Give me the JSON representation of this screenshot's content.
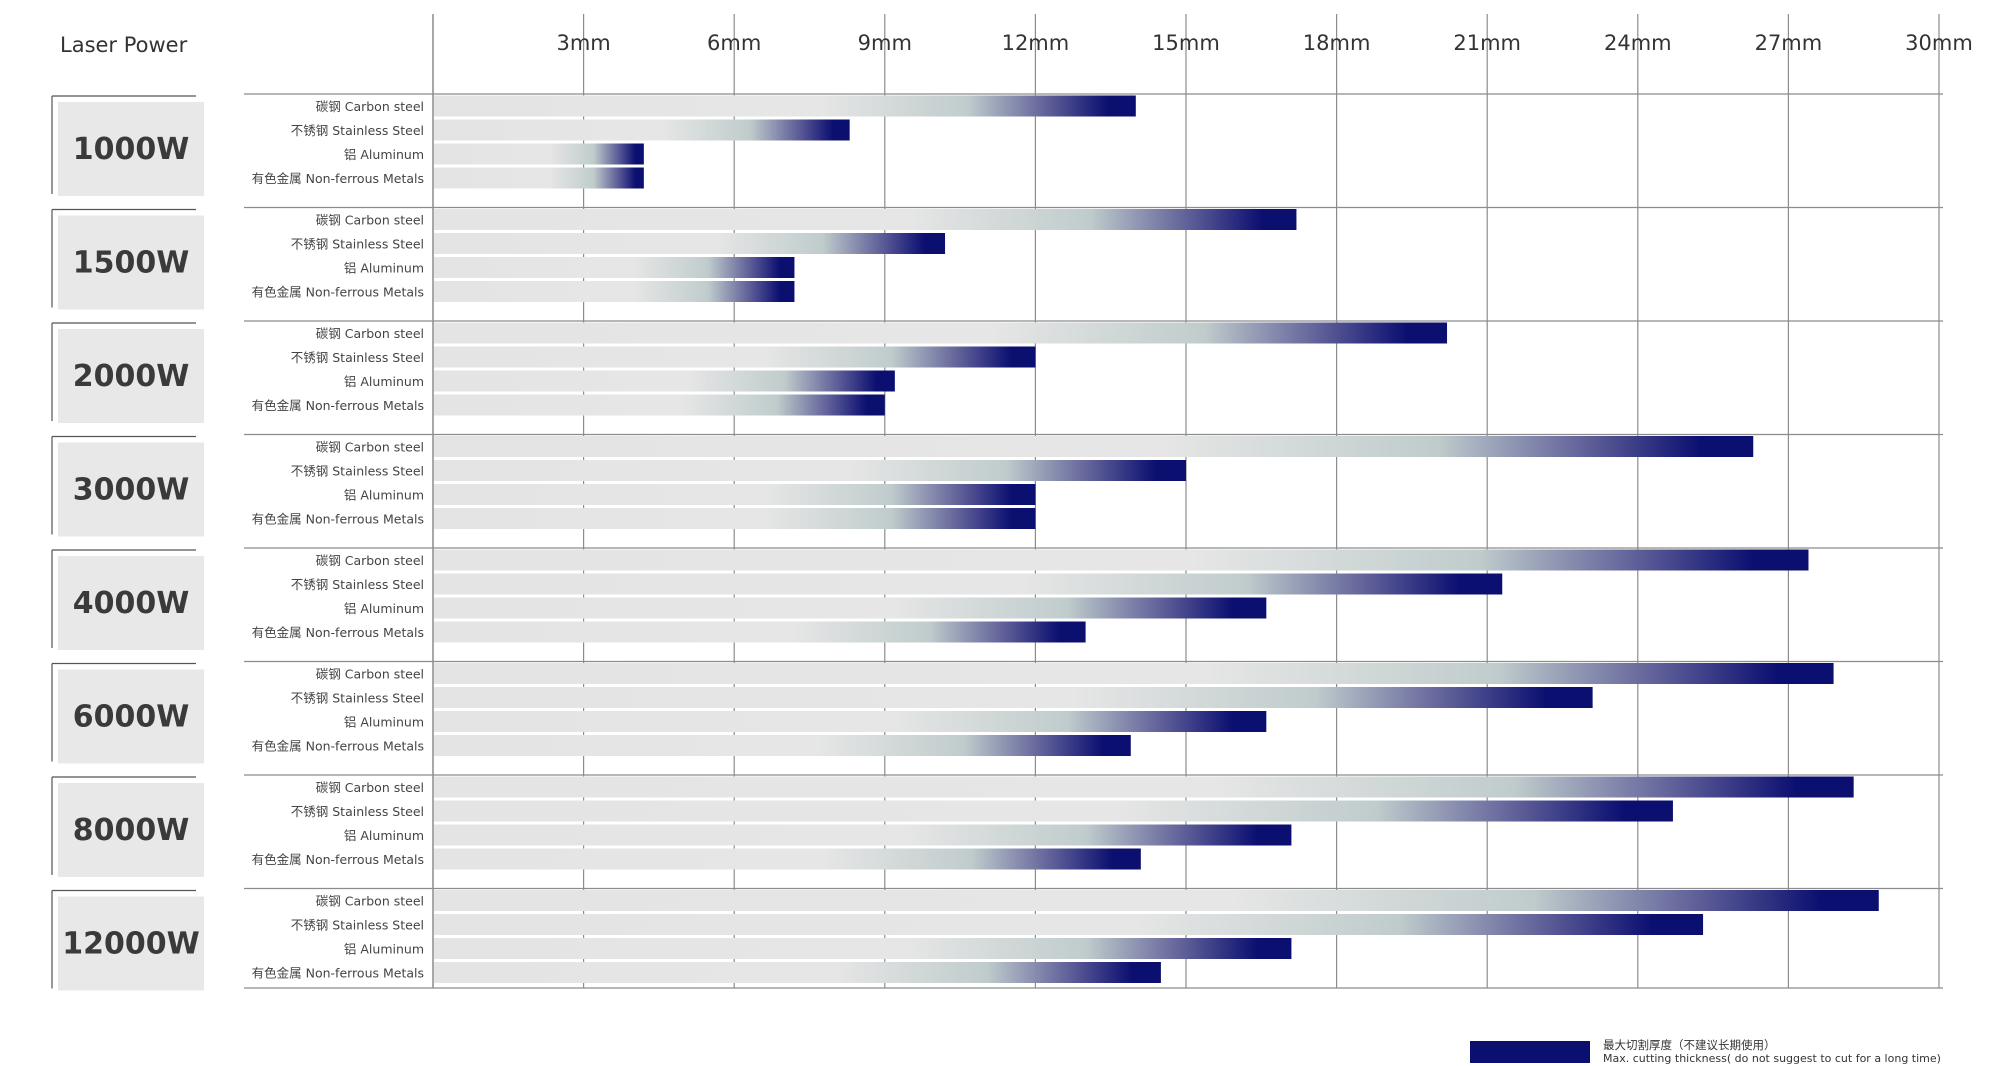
{
  "chart_data": {
    "type": "bar",
    "orientation": "horizontal",
    "header_label": "Laser Power",
    "x_unit": "mm",
    "x_ticks": [
      "3mm",
      "6mm",
      "9mm",
      "12mm",
      "15mm",
      "18mm",
      "21mm",
      "24mm",
      "27mm",
      "30mm"
    ],
    "x_tick_values": [
      3,
      6,
      9,
      12,
      15,
      18,
      21,
      24,
      27,
      30
    ],
    "xlim": [
      0,
      30
    ],
    "grid": true,
    "materials": [
      {
        "zh": "碳钢",
        "en": "Carbon steel"
      },
      {
        "zh": "不锈钢",
        "en": "Stainless Steel"
      },
      {
        "zh": "铝",
        "en": "Aluminum"
      },
      {
        "zh": "有色金属",
        "en": "Non-ferrous Metals"
      }
    ],
    "groups": [
      {
        "power": "1000W",
        "values": [
          14,
          8.3,
          4.2,
          4.2
        ]
      },
      {
        "power": "1500W",
        "values": [
          17.2,
          10.2,
          7.2,
          7.2
        ]
      },
      {
        "power": "2000W",
        "values": [
          20.2,
          12,
          9.2,
          9
        ]
      },
      {
        "power": "3000W",
        "values": [
          26.3,
          15,
          12,
          12
        ]
      },
      {
        "power": "4000W",
        "values": [
          27.4,
          21.3,
          16.6,
          13
        ]
      },
      {
        "power": "6000W",
        "values": [
          27.9,
          23.1,
          16.6,
          13.9
        ]
      },
      {
        "power": "8000W",
        "values": [
          28.3,
          24.7,
          17.1,
          14.1
        ]
      },
      {
        "power": "12000W",
        "values": [
          28.8,
          25.3,
          17.1,
          14.5
        ]
      }
    ],
    "colors": {
      "bar_base": "#e4e4e4",
      "bar_mid": "#c0cccc",
      "bar_end": "#0b0f70",
      "grid": "#8c8c8c",
      "label_box": "#e8e8e8"
    },
    "legend": {
      "line1": "最大切割厚度（不建议长期使用）",
      "line2": "Max. cutting thickness( do not suggest to cut for a long time)",
      "placement": "bottom-right"
    }
  }
}
